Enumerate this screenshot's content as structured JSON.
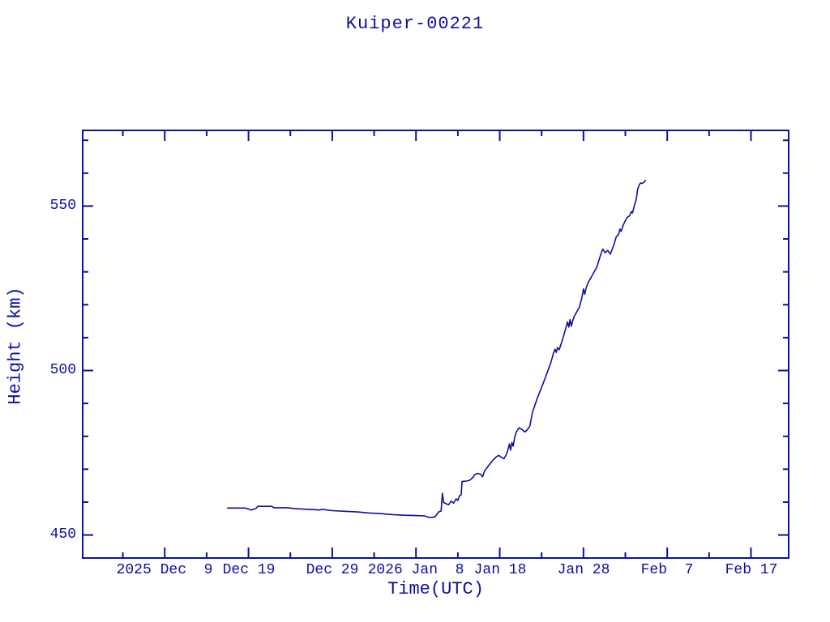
{
  "colors": {
    "line": "#0f0fa0",
    "text": "#0f0fa0",
    "background": "#ffffff"
  },
  "chart": {
    "title": "Kuiper-00221",
    "xlabel": "Time(UTC)",
    "ylabel": "Height (km)"
  },
  "chart_data": {
    "type": "line",
    "title": "Kuiper-00221",
    "xlabel": "Time(UTC)",
    "ylabel": "Height (km)",
    "legend": null,
    "grid": false,
    "x_epoch": "2025-12-09T00:00Z",
    "x_unit": "days since 2025 Dec 9 00:00 UTC",
    "x_range_days": [
      -9.8,
      74.5
    ],
    "ylim": [
      443,
      573
    ],
    "x_major_ticks_days": [
      0,
      10,
      20,
      30,
      40,
      50,
      60,
      70
    ],
    "x_minor_ticks_days": [
      -5,
      5,
      15,
      25,
      35,
      45,
      55,
      65
    ],
    "x_tick_labels": [
      "2025 Dec  9",
      "Dec 19",
      "Dec 29",
      "2026 Jan  8",
      "Jan 18",
      "Jan 28",
      "Feb  7",
      "Feb 17"
    ],
    "y_major_ticks": [
      550,
      500,
      450
    ],
    "y_tick_labels": [
      "550",
      "500",
      "450"
    ],
    "y_minor_ticks": [
      460,
      470,
      480,
      490,
      510,
      520,
      530,
      540,
      560,
      570
    ],
    "series": [
      {
        "name": "Kuiper-00221 height",
        "points_day_km": [
          [
            7.5,
            458.2
          ],
          [
            8.5,
            458.2
          ],
          [
            9.6,
            458.2
          ],
          [
            10.0,
            457.9
          ],
          [
            10.3,
            457.6
          ],
          [
            10.9,
            458.1
          ],
          [
            11.1,
            458.7
          ],
          [
            12.8,
            458.7
          ],
          [
            13.0,
            458.3
          ],
          [
            14.6,
            458.3
          ],
          [
            15.6,
            458.0
          ],
          [
            17.2,
            457.8
          ],
          [
            18.5,
            457.6
          ],
          [
            18.8,
            457.8
          ],
          [
            20.0,
            457.4
          ],
          [
            21.5,
            457.2
          ],
          [
            23.0,
            457.0
          ],
          [
            24.4,
            456.7
          ],
          [
            25.8,
            456.5
          ],
          [
            27.2,
            456.2
          ],
          [
            28.6,
            456.0
          ],
          [
            30.0,
            455.9
          ],
          [
            31.0,
            455.8
          ],
          [
            31.5,
            455.4
          ],
          [
            31.9,
            455.3
          ],
          [
            32.3,
            455.6
          ],
          [
            32.7,
            457.0
          ],
          [
            33.0,
            457.3
          ],
          [
            33.15,
            462.7
          ],
          [
            33.3,
            459.9
          ],
          [
            33.6,
            459.5
          ],
          [
            33.9,
            459.2
          ],
          [
            34.2,
            460.3
          ],
          [
            34.5,
            459.7
          ],
          [
            34.8,
            461.0
          ],
          [
            35.0,
            460.5
          ],
          [
            35.2,
            461.9
          ],
          [
            35.4,
            462.2
          ],
          [
            35.5,
            466.3
          ],
          [
            36.0,
            466.4
          ],
          [
            36.4,
            466.6
          ],
          [
            36.8,
            467.5
          ],
          [
            37.0,
            468.3
          ],
          [
            37.3,
            468.7
          ],
          [
            37.7,
            468.5
          ],
          [
            37.95,
            467.7
          ],
          [
            38.2,
            469.5
          ],
          [
            38.7,
            471.2
          ],
          [
            39.2,
            472.8
          ],
          [
            39.6,
            473.8
          ],
          [
            39.9,
            474.2
          ],
          [
            40.2,
            473.6
          ],
          [
            40.5,
            473.2
          ],
          [
            40.8,
            474.5
          ],
          [
            41.0,
            476.1
          ],
          [
            41.15,
            477.7
          ],
          [
            41.3,
            475.8
          ],
          [
            41.45,
            478.1
          ],
          [
            41.6,
            477.0
          ],
          [
            41.8,
            479.8
          ],
          [
            42.0,
            481.4
          ],
          [
            42.3,
            482.6
          ],
          [
            42.7,
            482.0
          ],
          [
            43.0,
            481.3
          ],
          [
            43.3,
            482.0
          ],
          [
            43.6,
            483.1
          ],
          [
            43.9,
            487.2
          ],
          [
            44.5,
            491.7
          ],
          [
            45.2,
            496.2
          ],
          [
            45.8,
            500.3
          ],
          [
            46.1,
            502.4
          ],
          [
            46.4,
            505.2
          ],
          [
            46.6,
            506.5
          ],
          [
            46.75,
            505.5
          ],
          [
            46.9,
            507.0
          ],
          [
            47.1,
            506.3
          ],
          [
            47.5,
            509.4
          ],
          [
            47.9,
            513.0
          ],
          [
            48.1,
            514.8
          ],
          [
            48.25,
            513.2
          ],
          [
            48.4,
            515.5
          ],
          [
            48.55,
            513.5
          ],
          [
            48.7,
            515.0
          ],
          [
            48.9,
            516.5
          ],
          [
            49.5,
            519.2
          ],
          [
            49.8,
            522.0
          ],
          [
            50.0,
            524.8
          ],
          [
            50.15,
            523.2
          ],
          [
            50.3,
            525.0
          ],
          [
            50.6,
            527.0
          ],
          [
            51.0,
            528.7
          ],
          [
            51.6,
            531.5
          ],
          [
            52.0,
            534.8
          ],
          [
            52.3,
            536.9
          ],
          [
            52.6,
            535.8
          ],
          [
            52.9,
            536.5
          ],
          [
            53.2,
            535.4
          ],
          [
            53.6,
            538.0
          ],
          [
            53.9,
            540.6
          ],
          [
            54.2,
            541.4
          ],
          [
            54.35,
            543.0
          ],
          [
            54.5,
            542.3
          ],
          [
            54.65,
            543.5
          ],
          [
            54.9,
            545.1
          ],
          [
            55.2,
            546.5
          ],
          [
            55.5,
            547.0
          ],
          [
            55.7,
            548.3
          ],
          [
            55.85,
            547.9
          ],
          [
            56.1,
            550.4
          ],
          [
            56.3,
            552.0
          ],
          [
            56.45,
            554.9
          ],
          [
            56.6,
            556.1
          ],
          [
            56.8,
            557.0
          ],
          [
            57.0,
            556.9
          ],
          [
            57.2,
            557.2
          ],
          [
            57.4,
            557.8
          ]
        ]
      }
    ]
  }
}
